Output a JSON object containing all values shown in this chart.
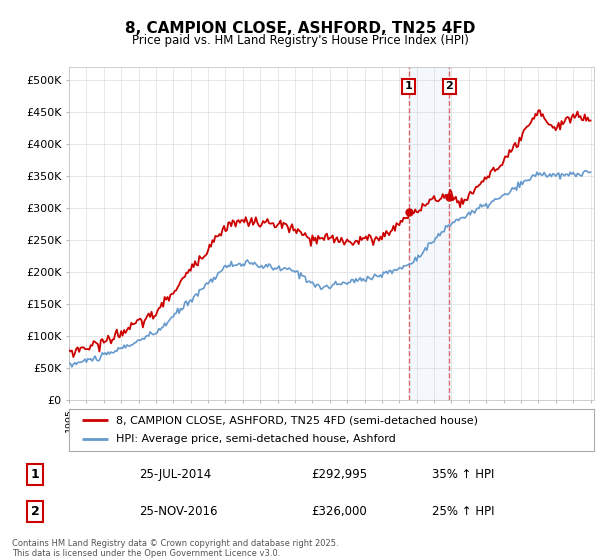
{
  "title": "8, CAMPION CLOSE, ASHFORD, TN25 4FD",
  "subtitle": "Price paid vs. HM Land Registry's House Price Index (HPI)",
  "legend_line1": "8, CAMPION CLOSE, ASHFORD, TN25 4FD (semi-detached house)",
  "legend_line2": "HPI: Average price, semi-detached house, Ashford",
  "transaction1_date": "25-JUL-2014",
  "transaction1_price": 292995,
  "transaction1_label": "35% ↑ HPI",
  "transaction2_date": "25-NOV-2016",
  "transaction2_price": 326000,
  "transaction2_label": "25% ↑ HPI",
  "footer": "Contains HM Land Registry data © Crown copyright and database right 2025.\nThis data is licensed under the Open Government Licence v3.0.",
  "ylim": [
    0,
    520000
  ],
  "yticks": [
    0,
    50000,
    100000,
    150000,
    200000,
    250000,
    300000,
    350000,
    400000,
    450000,
    500000
  ],
  "price_color": "#cc0000",
  "hpi_color": "#6699cc",
  "background_color": "#ffffff",
  "grid_color": "#dddddd"
}
